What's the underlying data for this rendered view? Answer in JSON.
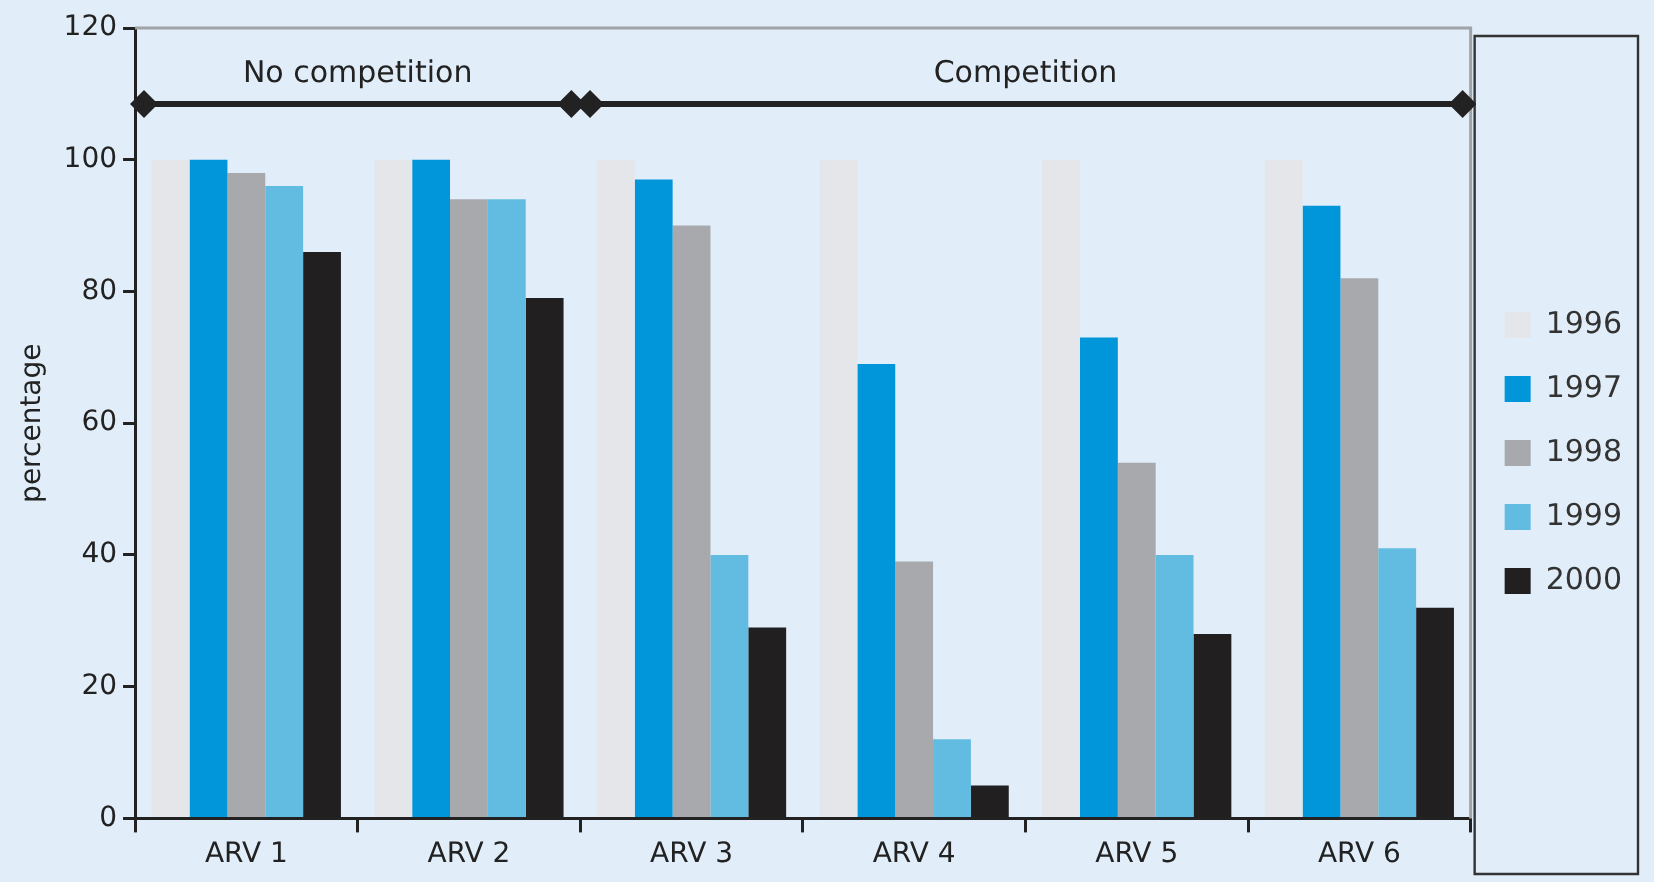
{
  "chart_data": {
    "type": "bar",
    "ylabel": "percentage",
    "categories": [
      "ARV 1",
      "ARV 2",
      "ARV 3",
      "ARV 4",
      "ARV 5",
      "ARV 6"
    ],
    "series": [
      {
        "name": "1996",
        "color": "#e4e6e9",
        "values": [
          100,
          100,
          100,
          100,
          100,
          100
        ]
      },
      {
        "name": "1997",
        "color": "#0096d9",
        "values": [
          100,
          100,
          97,
          69,
          73,
          93
        ]
      },
      {
        "name": "1998",
        "color": "#a8a9ad",
        "values": [
          98,
          94,
          90,
          39,
          54,
          82
        ]
      },
      {
        "name": "1999",
        "color": "#62bbe0",
        "values": [
          96,
          94,
          40,
          12,
          40,
          41
        ]
      },
      {
        "name": "2000",
        "color": "#221f20",
        "values": [
          86,
          79,
          29,
          5,
          28,
          32
        ]
      }
    ],
    "ylim": [
      0,
      120
    ],
    "yticks": [
      0,
      20,
      40,
      60,
      80,
      100,
      120
    ],
    "grid": false,
    "legend": "right",
    "annotations": [
      "No competition",
      "Competition"
    ]
  }
}
